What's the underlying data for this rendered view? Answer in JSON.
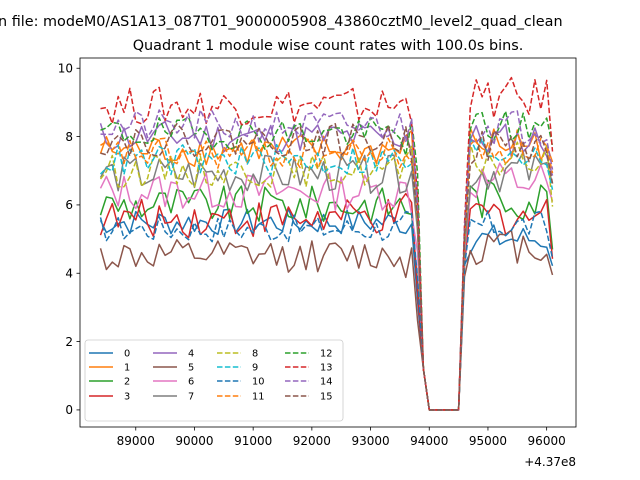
{
  "chart_data": {
    "type": "line",
    "suptitle": "n file: modeM0/AS1A13_087T01_9000005908_43860cztM0_level2_quad_clean",
    "title": "Quadrant 1 module wise count rates with 100.0s bins.",
    "xlabel": "",
    "ylabel": "",
    "x_offset_label": "+4.37e8",
    "xlim": [
      88050,
      96500
    ],
    "ylim": [
      -0.5,
      10.3
    ],
    "x_ticks": [
      89000,
      90000,
      91000,
      92000,
      93000,
      94000,
      95000,
      96000
    ],
    "x_tick_labels": [
      "89000",
      "90000",
      "91000",
      "92000",
      "93000",
      "94000",
      "95000",
      "96000"
    ],
    "y_ticks": [
      0,
      2,
      4,
      6,
      8,
      10
    ],
    "y_tick_labels": [
      "0",
      "2",
      "4",
      "6",
      "8",
      "10"
    ],
    "grid": false,
    "legend_placement": "lower-left",
    "legend_columns": 4,
    "x_start": 88400,
    "x_step": 100,
    "x_count": 78,
    "gap": {
      "start": 93900,
      "end": 94600
    },
    "series": [
      {
        "name": "0",
        "color": "#1f77b4",
        "dash": "solid",
        "base": 5.5,
        "amp": 0.25,
        "end_level": 5.0
      },
      {
        "name": "1",
        "color": "#ff7f0e",
        "dash": "solid",
        "base": 7.6,
        "amp": 0.3,
        "end_level": 7.8
      },
      {
        "name": "2",
        "color": "#2ca02c",
        "dash": "solid",
        "base": 6.0,
        "amp": 0.35,
        "end_level": 6.2
      },
      {
        "name": "3",
        "color": "#d62728",
        "dash": "solid",
        "base": 5.6,
        "amp": 0.35,
        "end_level": 5.7
      },
      {
        "name": "4",
        "color": "#9467bd",
        "dash": "solid",
        "base": 8.0,
        "amp": 0.3,
        "end_level": 7.9
      },
      {
        "name": "5",
        "color": "#8c564b",
        "dash": "solid",
        "base": 4.5,
        "amp": 0.3,
        "end_level": 4.8
      },
      {
        "name": "6",
        "color": "#e377c2",
        "dash": "solid",
        "base": 6.4,
        "amp": 0.35,
        "end_level": 6.7
      },
      {
        "name": "7",
        "color": "#7f7f7f",
        "dash": "solid",
        "base": 6.9,
        "amp": 0.35,
        "end_level": 7.0
      },
      {
        "name": "8",
        "color": "#bcbd22",
        "dash": "dashed",
        "base": 7.0,
        "amp": 0.3,
        "end_level": 7.3
      },
      {
        "name": "9",
        "color": "#17becf",
        "dash": "dashed",
        "base": 7.3,
        "amp": 0.3,
        "end_level": 7.6
      },
      {
        "name": "10",
        "color": "#1f77b4",
        "dash": "dashed",
        "base": 5.3,
        "amp": 0.25,
        "end_level": 5.4
      },
      {
        "name": "11",
        "color": "#ff7f0e",
        "dash": "dashed",
        "base": 7.5,
        "amp": 0.3,
        "end_level": 7.7
      },
      {
        "name": "12",
        "color": "#2ca02c",
        "dash": "dashed",
        "base": 8.1,
        "amp": 0.3,
        "end_level": 8.3
      },
      {
        "name": "13",
        "color": "#d62728",
        "dash": "dashed",
        "base": 8.9,
        "amp": 0.35,
        "end_level": 9.1
      },
      {
        "name": "14",
        "color": "#9467bd",
        "dash": "dashed",
        "base": 8.3,
        "amp": 0.3,
        "end_level": 8.3
      },
      {
        "name": "15",
        "color": "#8c564b",
        "dash": "dashed",
        "base": 7.9,
        "amp": 0.3,
        "end_level": 7.7
      }
    ]
  }
}
